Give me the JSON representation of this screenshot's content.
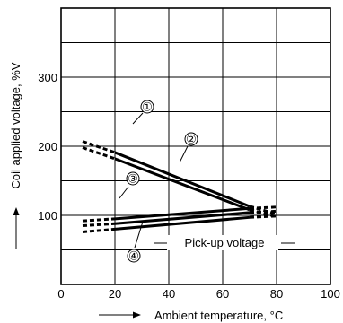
{
  "chart_data": {
    "type": "line",
    "xlabel": "Ambient temperature, °C",
    "ylabel": "Coil applied voltage, %V",
    "xlim": [
      0,
      100
    ],
    "ylim": [
      0,
      400
    ],
    "x_ticks": [
      "0",
      "20",
      "40",
      "60",
      "80",
      "100"
    ],
    "y_ticks": [
      "100",
      "200",
      "300"
    ],
    "grid": true,
    "series": [
      {
        "name": "①",
        "solid": [
          [
            20,
            191
          ],
          [
            70,
            113
          ]
        ],
        "dashed_start": [
          [
            8,
            207
          ],
          [
            20,
            191
          ]
        ],
        "dashed_end": [
          [
            70,
            113
          ],
          [
            80,
            102
          ]
        ]
      },
      {
        "name": "②",
        "solid": [
          [
            20,
            182
          ],
          [
            70,
            108
          ]
        ],
        "dashed_start": [
          [
            8,
            198
          ],
          [
            20,
            182
          ]
        ],
        "dashed_end": [
          [
            70,
            108
          ],
          [
            80,
            98
          ]
        ]
      },
      {
        "name": "③",
        "solid": [
          [
            20,
            95
          ],
          [
            70,
            110
          ]
        ],
        "dashed_start": [
          [
            8,
            92
          ],
          [
            20,
            95
          ]
        ],
        "dashed_end": [
          [
            70,
            110
          ],
          [
            80,
            112
          ]
        ]
      },
      {
        "name": "④",
        "solid": [
          [
            20,
            80
          ],
          [
            70,
            97
          ]
        ],
        "dashed_start": [
          [
            8,
            76
          ],
          [
            20,
            80
          ]
        ],
        "dashed_end": [
          [
            70,
            97
          ],
          [
            80,
            99
          ]
        ]
      }
    ],
    "series_extra": [
      {
        "solid": [
          [
            20,
            88
          ],
          [
            70,
            104
          ]
        ],
        "dashed_start": [
          [
            8,
            85
          ],
          [
            20,
            88
          ]
        ],
        "dashed_end": [
          [
            70,
            104
          ],
          [
            80,
            106
          ]
        ]
      }
    ],
    "annotations": {
      "pickup_label": "Pick-up voltage",
      "circle_1": "①",
      "circle_2": "②",
      "circle_3": "③",
      "circle_4": "④"
    }
  }
}
